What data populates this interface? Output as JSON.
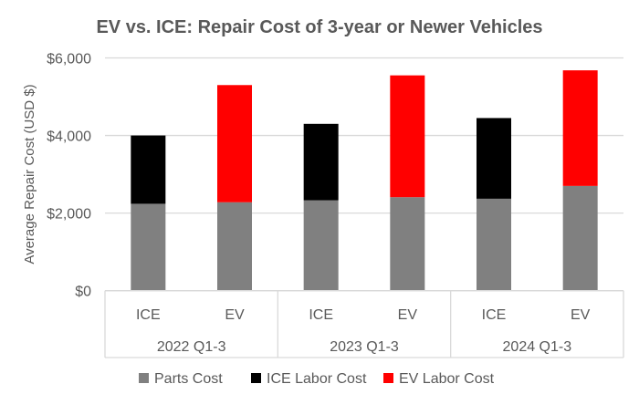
{
  "chart_data": {
    "type": "bar",
    "stacked": true,
    "title": "EV vs. ICE: Repair Cost of 3-year or Newer Vehicles",
    "xlabel": "",
    "ylabel": "Average Repair Cost (USD $)",
    "ylim": [
      0,
      6000
    ],
    "yticks": [
      "$0",
      "$2,000",
      "$4,000",
      "$6,000"
    ],
    "ytick_values": [
      0,
      2000,
      4000,
      6000
    ],
    "grid": true,
    "groups": [
      "2022 Q1-3",
      "2023 Q1-3",
      "2024 Q1-3"
    ],
    "categories": [
      "ICE",
      "EV",
      "ICE",
      "EV",
      "ICE",
      "EV"
    ],
    "series": [
      {
        "name": "Parts Cost",
        "color": "#808080",
        "values": [
          2240,
          2280,
          2330,
          2410,
          2370,
          2700
        ]
      },
      {
        "name": "ICE Labor Cost",
        "color": "#000000",
        "values": [
          1760,
          null,
          1970,
          null,
          2080,
          null
        ]
      },
      {
        "name": "EV Labor Cost",
        "color": "#ff0000",
        "values": [
          null,
          3020,
          null,
          3140,
          null,
          2980
        ]
      }
    ],
    "legend_position": "bottom"
  }
}
